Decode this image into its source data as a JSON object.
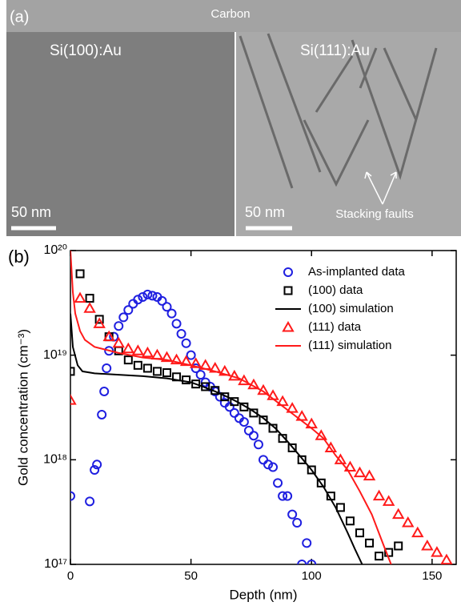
{
  "image_panel": {
    "label": "(a)",
    "carbon_label": "Carbon",
    "left_title": "Si(100):Au",
    "right_title": "Si(111):Au",
    "left_scale": "50 nm",
    "right_scale": "50 nm",
    "annotation": "Stacking faults"
  },
  "chart_data": {
    "type": "scatter",
    "panel_label": "(b)",
    "x_label": "Depth (nm)",
    "y_label": "Gold concentration (cm⁻³)",
    "xlim": [
      0,
      160
    ],
    "xticks": [
      0,
      50,
      100,
      150
    ],
    "ylim": [
      1e+17,
      1e+20
    ],
    "log_y": true,
    "yticks": [
      {
        "value": 1e+17,
        "label": "10¹⁷"
      },
      {
        "value": 1e+18,
        "label": "10¹⁸"
      },
      {
        "value": 1e+19,
        "label": "10¹⁹"
      },
      {
        "value": 1e+20,
        "label": "10²⁰"
      }
    ],
    "legend": "top-right",
    "series": [
      {
        "name": "As-implanted data",
        "color": "#1f1fe0",
        "marker": "circle",
        "x": [
          0,
          8,
          10,
          11,
          13,
          14,
          15,
          16,
          18,
          20,
          22,
          24,
          26,
          28,
          30,
          32,
          34,
          36,
          38,
          40,
          42,
          44,
          46,
          48,
          50,
          52,
          54,
          56,
          58,
          60,
          62,
          64,
          66,
          68,
          70,
          72,
          74,
          76,
          78,
          80,
          82,
          84,
          86,
          88,
          90,
          92,
          94,
          96,
          98,
          100
        ],
        "values": [
          4.5e+17,
          4e+17,
          8e+17,
          9e+17,
          2.7e+18,
          4.5e+18,
          7.5e+18,
          1.1e+19,
          1.5e+19,
          1.9e+19,
          2.3e+19,
          2.7e+19,
          3.1e+19,
          3.4e+19,
          3.6e+19,
          3.8e+19,
          3.7e+19,
          3.6e+19,
          3.3e+19,
          2.9e+19,
          2.5e+19,
          2e+19,
          1.6e+19,
          1.3e+19,
          1e+19,
          7.5e+18,
          6.5e+18,
          5.5e+18,
          5e+18,
          4.5e+18,
          4e+18,
          3.5e+18,
          3.2e+18,
          2.8e+18,
          2.5e+18,
          2.3e+18,
          1.9e+18,
          1.7e+18,
          1.4e+18,
          1e+18,
          9e+17,
          8.5e+17,
          6e+17,
          4.5e+17,
          4.5e+17,
          3e+17,
          2.5e+17,
          1e+17,
          1.6e+17,
          1e+17
        ]
      },
      {
        "name": "(100) data",
        "color": "#000000",
        "marker": "square",
        "x": [
          0,
          4,
          8,
          12,
          16,
          20,
          24,
          28,
          32,
          36,
          40,
          44,
          48,
          52,
          56,
          60,
          64,
          68,
          72,
          76,
          80,
          84,
          88,
          92,
          96,
          100,
          104,
          108,
          112,
          116,
          120,
          124,
          128,
          132,
          136
        ],
        "values": [
          7e+18,
          6e+19,
          3.5e+19,
          2.2e+19,
          1.5e+19,
          1.1e+19,
          9e+18,
          8e+18,
          7.5e+18,
          7e+18,
          6.8e+18,
          6.2e+18,
          5.8e+18,
          5.3e+18,
          5e+18,
          4.6e+18,
          4e+18,
          3.6e+18,
          3.2e+18,
          2.8e+18,
          2.4e+18,
          2e+18,
          1.6e+18,
          1.3e+18,
          1e+18,
          8e+17,
          6e+17,
          4.5e+17,
          3.5e+17,
          2.6e+17,
          2e+17,
          1.6e+17,
          1.2e+17,
          1.3e+17,
          1.5e+17
        ]
      },
      {
        "name": "(100) simulation",
        "color": "#000000",
        "marker": "line",
        "x": [
          0,
          1,
          3,
          5,
          10,
          20,
          30,
          40,
          50,
          55,
          60,
          65,
          70,
          75,
          80,
          85,
          90,
          95,
          100,
          105,
          110,
          115,
          118,
          121
        ],
        "values": [
          2.5e+19,
          1.2e+19,
          8e+18,
          7e+18,
          6.7e+18,
          6.5e+18,
          6.3e+18,
          6e+18,
          5.5e+18,
          5e+18,
          4.5e+18,
          4e+18,
          3.5e+18,
          3e+18,
          2.5e+18,
          2e+18,
          1.5e+18,
          1.1e+18,
          8e+17,
          5.5e+17,
          3.5e+17,
          2e+17,
          1.4e+17,
          1e+17
        ]
      },
      {
        "name": "(111) data",
        "color": "#ff1a1a",
        "marker": "triangle",
        "x": [
          0,
          4,
          8,
          12,
          16,
          20,
          24,
          28,
          32,
          36,
          40,
          44,
          48,
          52,
          56,
          60,
          64,
          68,
          72,
          76,
          80,
          84,
          88,
          92,
          96,
          100,
          104,
          108,
          112,
          116,
          120,
          124,
          128,
          132,
          136,
          140,
          144,
          148,
          152,
          156
        ],
        "values": [
          3.7e+18,
          3.5e+19,
          2.8e+19,
          2e+19,
          1.5e+19,
          1.3e+19,
          1.15e+19,
          1.1e+19,
          1.05e+19,
          1e+19,
          9.5e+18,
          9e+18,
          8.7e+18,
          8.3e+18,
          8e+18,
          7.5e+18,
          7e+18,
          6.3e+18,
          5.7e+18,
          5.2e+18,
          4.6e+18,
          4.1e+18,
          3.6e+18,
          3.1e+18,
          2.6e+18,
          2.2e+18,
          1.7e+18,
          1.3e+18,
          1e+18,
          8.5e+17,
          7.5e+17,
          7e+17,
          4.5e+17,
          4e+17,
          3e+17,
          2.5e+17,
          2e+17,
          1.5e+17,
          1.3e+17,
          1.1e+17
        ]
      },
      {
        "name": "(111) simulation",
        "color": "#ff1a1a",
        "marker": "line",
        "x": [
          0,
          1,
          2,
          4,
          6,
          10,
          20,
          30,
          40,
          50,
          60,
          70,
          80,
          90,
          100,
          105,
          110,
          115,
          120,
          125,
          130,
          133
        ],
        "values": [
          1e+20,
          4e+19,
          2.5e+19,
          1.7e+19,
          1.4e+19,
          1.2e+19,
          1.05e+19,
          9.5e+18,
          9e+18,
          8e+18,
          7e+18,
          6e+18,
          4.5e+18,
          3e+18,
          2e+18,
          1.6e+18,
          1.1e+18,
          8e+17,
          5e+17,
          3e+17,
          1.5e+17,
          1e+17
        ]
      }
    ]
  }
}
